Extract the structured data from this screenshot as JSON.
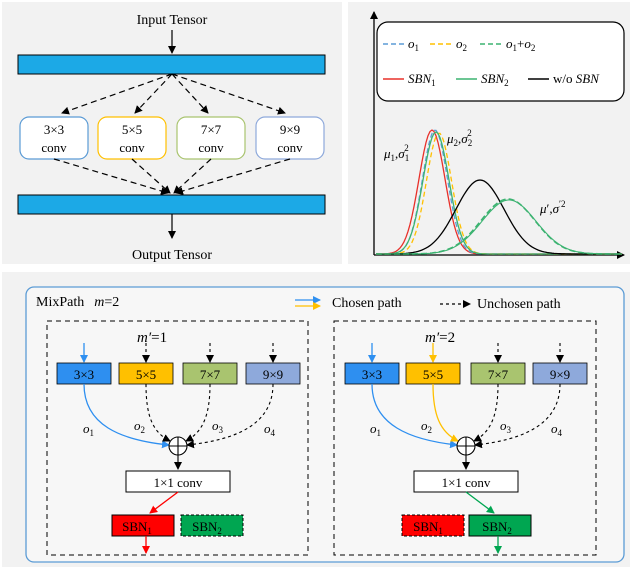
{
  "panel_a": {
    "input_label": "Input Tensor",
    "output_label": "Output Tensor",
    "branches": [
      {
        "line1": "3×3",
        "line2": "conv",
        "border": "#5b9bd5"
      },
      {
        "line1": "5×5",
        "line2": "conv",
        "border": "#ffc000"
      },
      {
        "line1": "7×7",
        "line2": "conv",
        "border": "#a9c46f"
      },
      {
        "line1": "9×9",
        "line2": "conv",
        "border": "#8ea9db"
      }
    ],
    "bar_color": "#1ca9e6"
  },
  "panel_b": {
    "legend": {
      "o1": "o",
      "o1_sub": "1",
      "o2": "o",
      "o2_sub": "2",
      "sum_a": "o",
      "sum_a_sub": "1",
      "sum_plus": "+",
      "sum_b": "o",
      "sum_b_sub": "2",
      "sbn1": "SBN",
      "sbn1_sub": "1",
      "sbn2": "SBN",
      "sbn2_sub": "2",
      "wo_prefix": "w/o ",
      "wo_italic": "SBN"
    },
    "ann1": {
      "mu": "μ",
      "mu_sub": "1",
      "sep": ",",
      "sig": "σ",
      "sig_sub": "1",
      "sig_sup": "2"
    },
    "ann2": {
      "mu": "μ",
      "mu_sub": "2",
      "sep": ",",
      "sig": "σ",
      "sig_sub": "2",
      "sig_sup": "2"
    },
    "ann3": {
      "mu": "μ",
      "prime": "′",
      "sep": ",",
      "sig": "σ",
      "sig_sup": "′2"
    },
    "colors": {
      "o1": "#5b9bd5",
      "o2": "#ffc000",
      "sum": "#3cb371",
      "sbn1": "#e8302a",
      "sbn2": "#3cb371",
      "wo": "#000000"
    }
  },
  "panel_c": {
    "title": "MixPath",
    "m_label": "m",
    "m_eq": "=2",
    "legend_chosen": "Chosen path",
    "legend_unchosen": "Unchosen path",
    "left": {
      "mp": "m′",
      "mp_eq": "=1",
      "ops": [
        "3×3",
        "5×5",
        "7×7",
        "9×9"
      ],
      "conv": "1×1 conv",
      "sbn1": "SBN",
      "sbn1_sub": "1",
      "sbn2": "SBN",
      "sbn2_sub": "2",
      "o_labels": [
        "o",
        "o",
        "o",
        "o"
      ],
      "o_subs": [
        "1",
        "2",
        "3",
        "4"
      ]
    },
    "right": {
      "mp": "m′",
      "mp_eq": "=2",
      "ops": [
        "3×3",
        "5×5",
        "7×7",
        "9×9"
      ],
      "conv": "1×1 conv",
      "sbn1": "SBN",
      "sbn1_sub": "1",
      "sbn2": "SBN",
      "sbn2_sub": "2",
      "o_labels": [
        "o",
        "o",
        "o",
        "o"
      ],
      "o_subs": [
        "1",
        "2",
        "3",
        "4"
      ]
    },
    "op_colors": [
      "#2e8ff0",
      "#ffc000",
      "#a9c46f",
      "#8ea9db"
    ],
    "chosen_blue": "#2e8ff0",
    "chosen_gold": "#ffc000",
    "sbn_red": "#ff0000",
    "sbn_green": "#00a651"
  }
}
